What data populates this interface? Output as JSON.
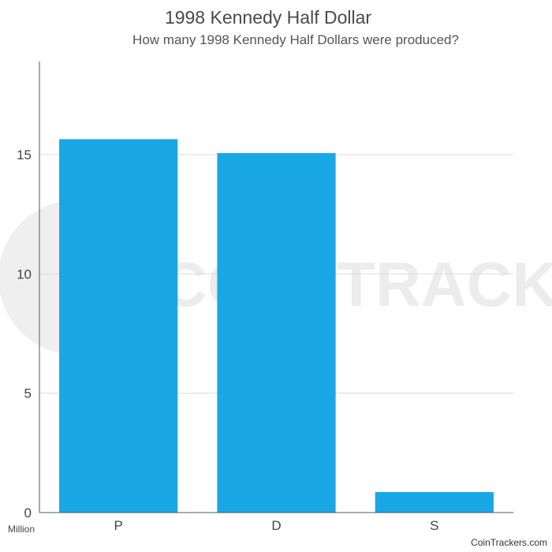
{
  "chart_data": {
    "type": "bar",
    "title": "1998 Kennedy Half Dollar",
    "subtitle": "How many 1998 Kennedy Half Dollars were produced?",
    "categories": [
      "P",
      "D",
      "S"
    ],
    "values": [
      15.646,
      15.064,
      0.86
    ],
    "yunit": "Million",
    "ylim": [
      0,
      18.9
    ],
    "yticks": [
      0,
      5,
      10,
      15
    ],
    "grid": true,
    "color": "#1aa7e5"
  },
  "watermark": {
    "text": "COIN TRACKERS",
    "color": "#eaeaea"
  },
  "source": "CoinTrackers.com"
}
